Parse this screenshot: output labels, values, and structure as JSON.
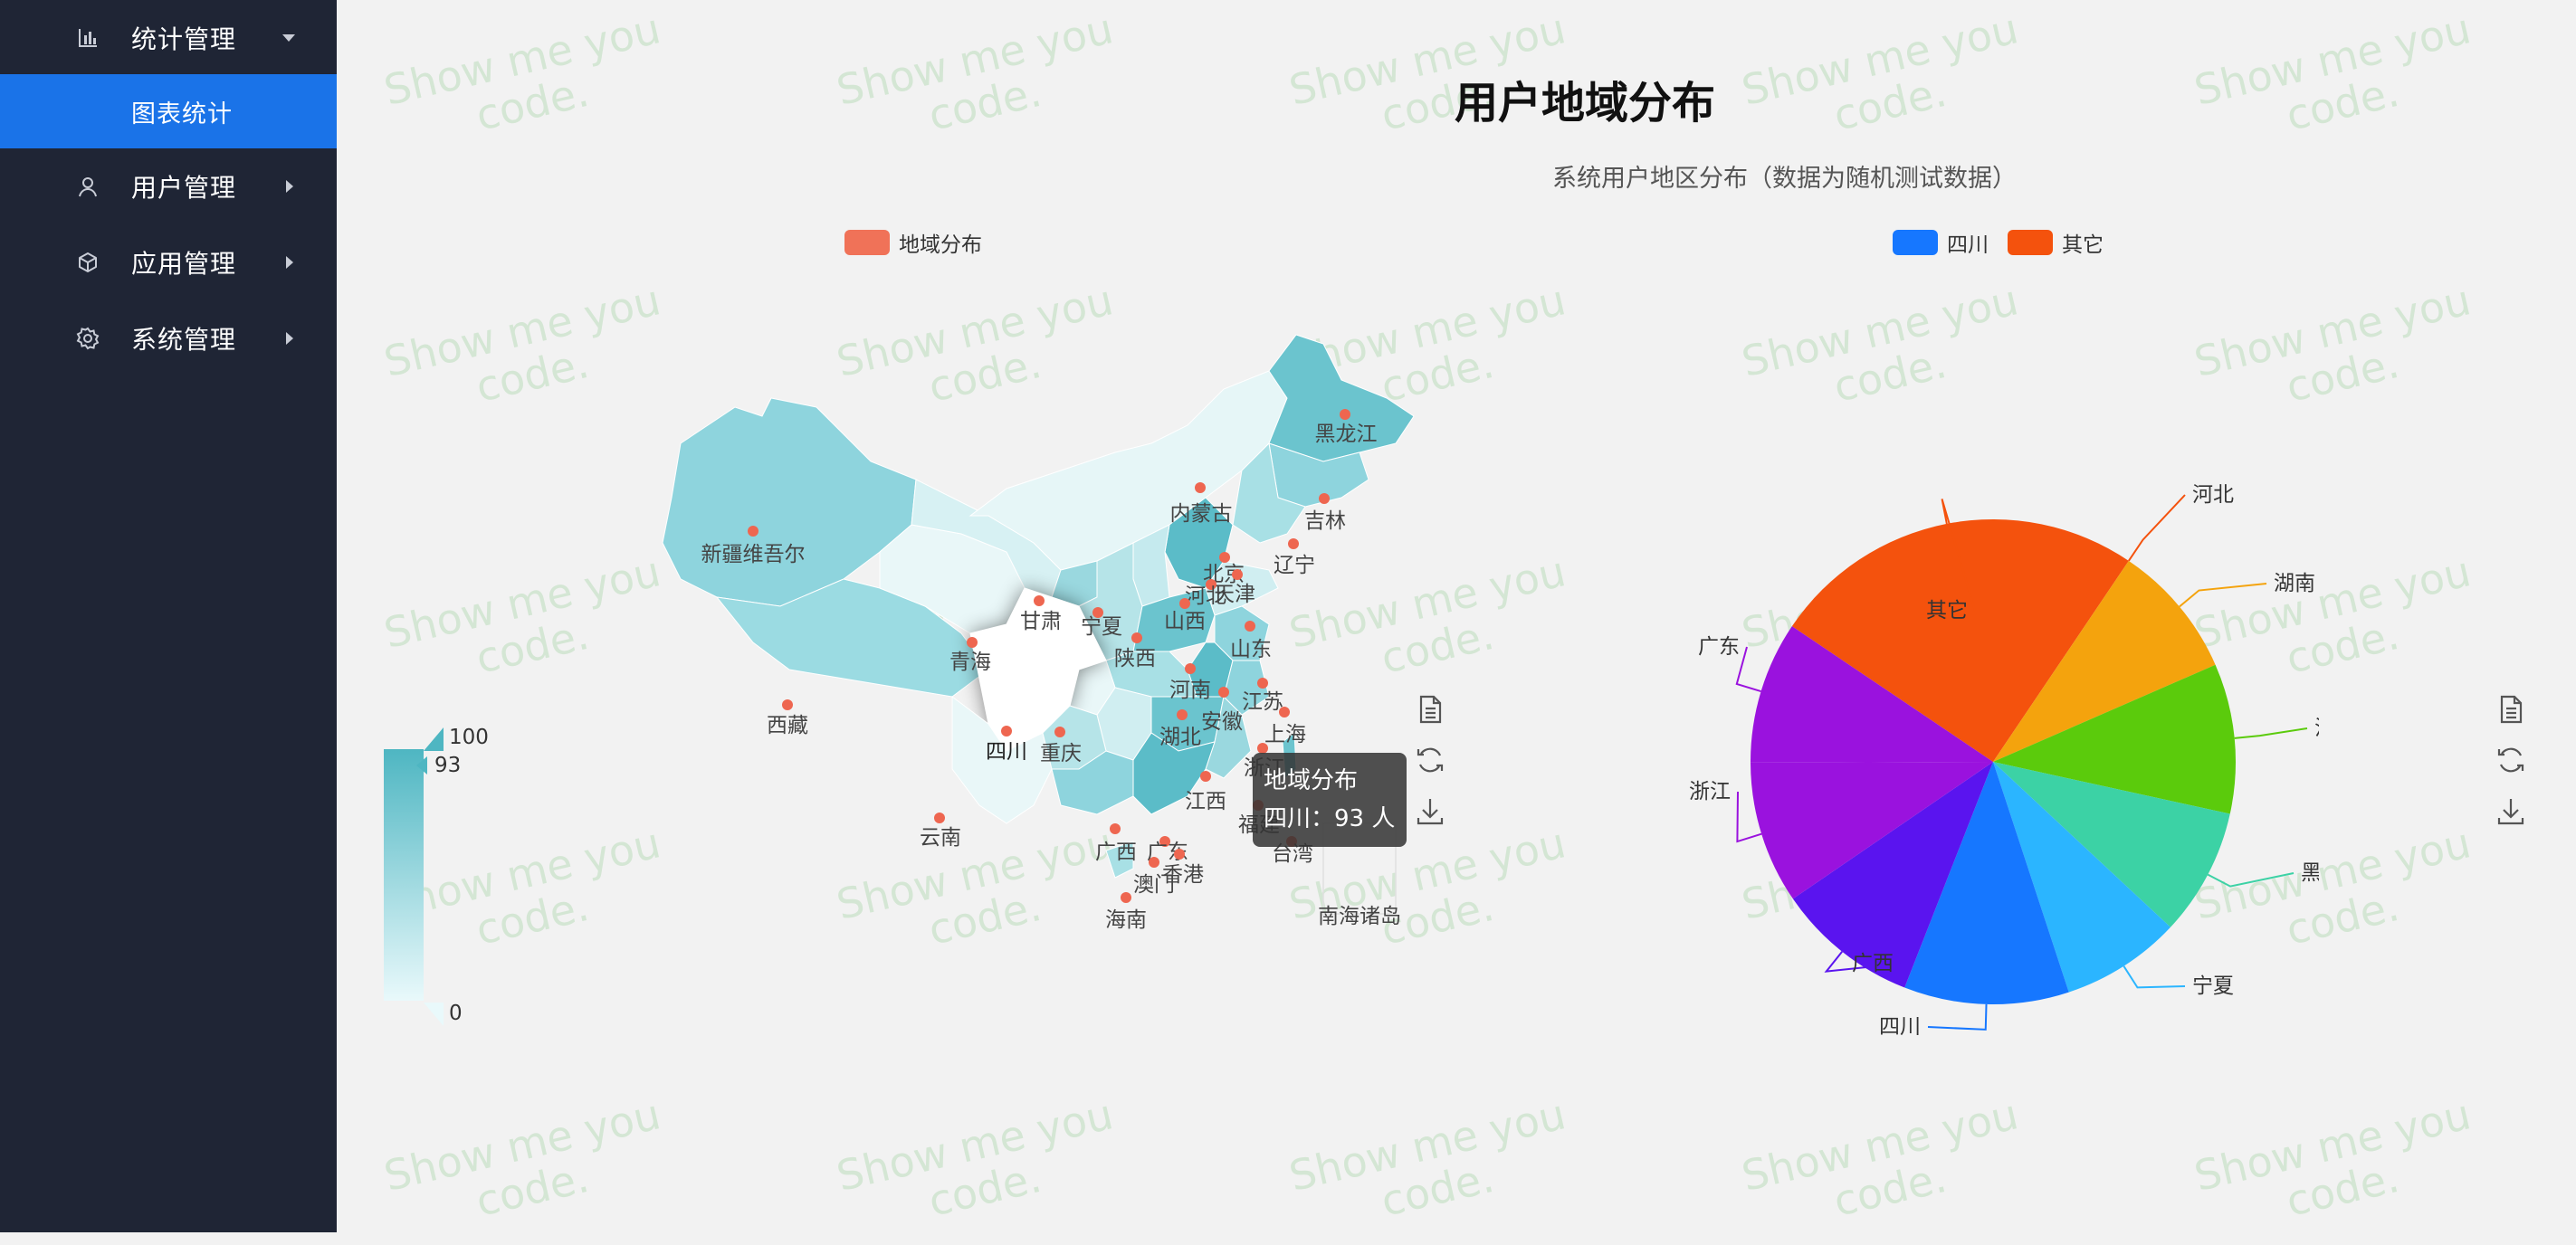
{
  "sidebar": {
    "items": [
      {
        "label": "统计管理",
        "icon": "bar-chart-icon",
        "expanded": true
      },
      {
        "label": "用户管理",
        "icon": "user-icon"
      },
      {
        "label": "应用管理",
        "icon": "cube-icon"
      },
      {
        "label": "系统管理",
        "icon": "gear-icon"
      }
    ],
    "active_sub": "图表统计",
    "active_color": "#1a73e8"
  },
  "watermark_text": "Show me you code.",
  "header": {
    "title": "用户地域分布",
    "subtitle": "系统用户地区分布（数据为随机测试数据）"
  },
  "map": {
    "legend": "地域分布",
    "legend_color": "#f07258",
    "visual_map": {
      "max": "100",
      "min": "0",
      "current": "93"
    },
    "tooltip": {
      "series": "地域分布",
      "content": "四川：93 人"
    },
    "provinces": [
      "黑龙江",
      "吉林",
      "内蒙古",
      "辽宁",
      "北京",
      "天津",
      "河北",
      "新疆维吾尔",
      "甘肃",
      "宁夏",
      "山西",
      "陕西",
      "青海",
      "山东",
      "河南",
      "江苏",
      "安徽",
      "上海",
      "湖北",
      "西藏",
      "四川",
      "重庆",
      "浙江",
      "江西",
      "福建",
      "云南",
      "广西",
      "广东",
      "台湾",
      "香港",
      "澳门",
      "海南",
      "南海诸岛"
    ],
    "highlight": "四川"
  },
  "pie": {
    "legend": [
      {
        "name": "四川",
        "color": "#1677ff"
      },
      {
        "name": "其它",
        "color": "#f4520d"
      }
    ]
  },
  "chart_data": {
    "type": "pie",
    "slices": [
      {
        "name": "其它",
        "value": 25,
        "color": "#f4520d"
      },
      {
        "name": "河北",
        "value": 0,
        "color": "#f4520d"
      },
      {
        "name": "湖南",
        "value": 9,
        "color": "#f4a30d"
      },
      {
        "name": "江西",
        "value": 10,
        "color": "#5bcb0c"
      },
      {
        "name": "黑龙江",
        "value": 8.5,
        "color": "#3cd2a5"
      },
      {
        "name": "宁夏",
        "value": 8,
        "color": "#2bb5ff"
      },
      {
        "name": "四川",
        "value": 11,
        "color": "#1677ff"
      },
      {
        "name": "广西",
        "value": 9.5,
        "color": "#5a14ef"
      },
      {
        "name": "浙江",
        "value": 9.5,
        "color": "#9a12de"
      },
      {
        "name": "广东",
        "value": 9.5,
        "color": "#9a12de"
      }
    ]
  }
}
